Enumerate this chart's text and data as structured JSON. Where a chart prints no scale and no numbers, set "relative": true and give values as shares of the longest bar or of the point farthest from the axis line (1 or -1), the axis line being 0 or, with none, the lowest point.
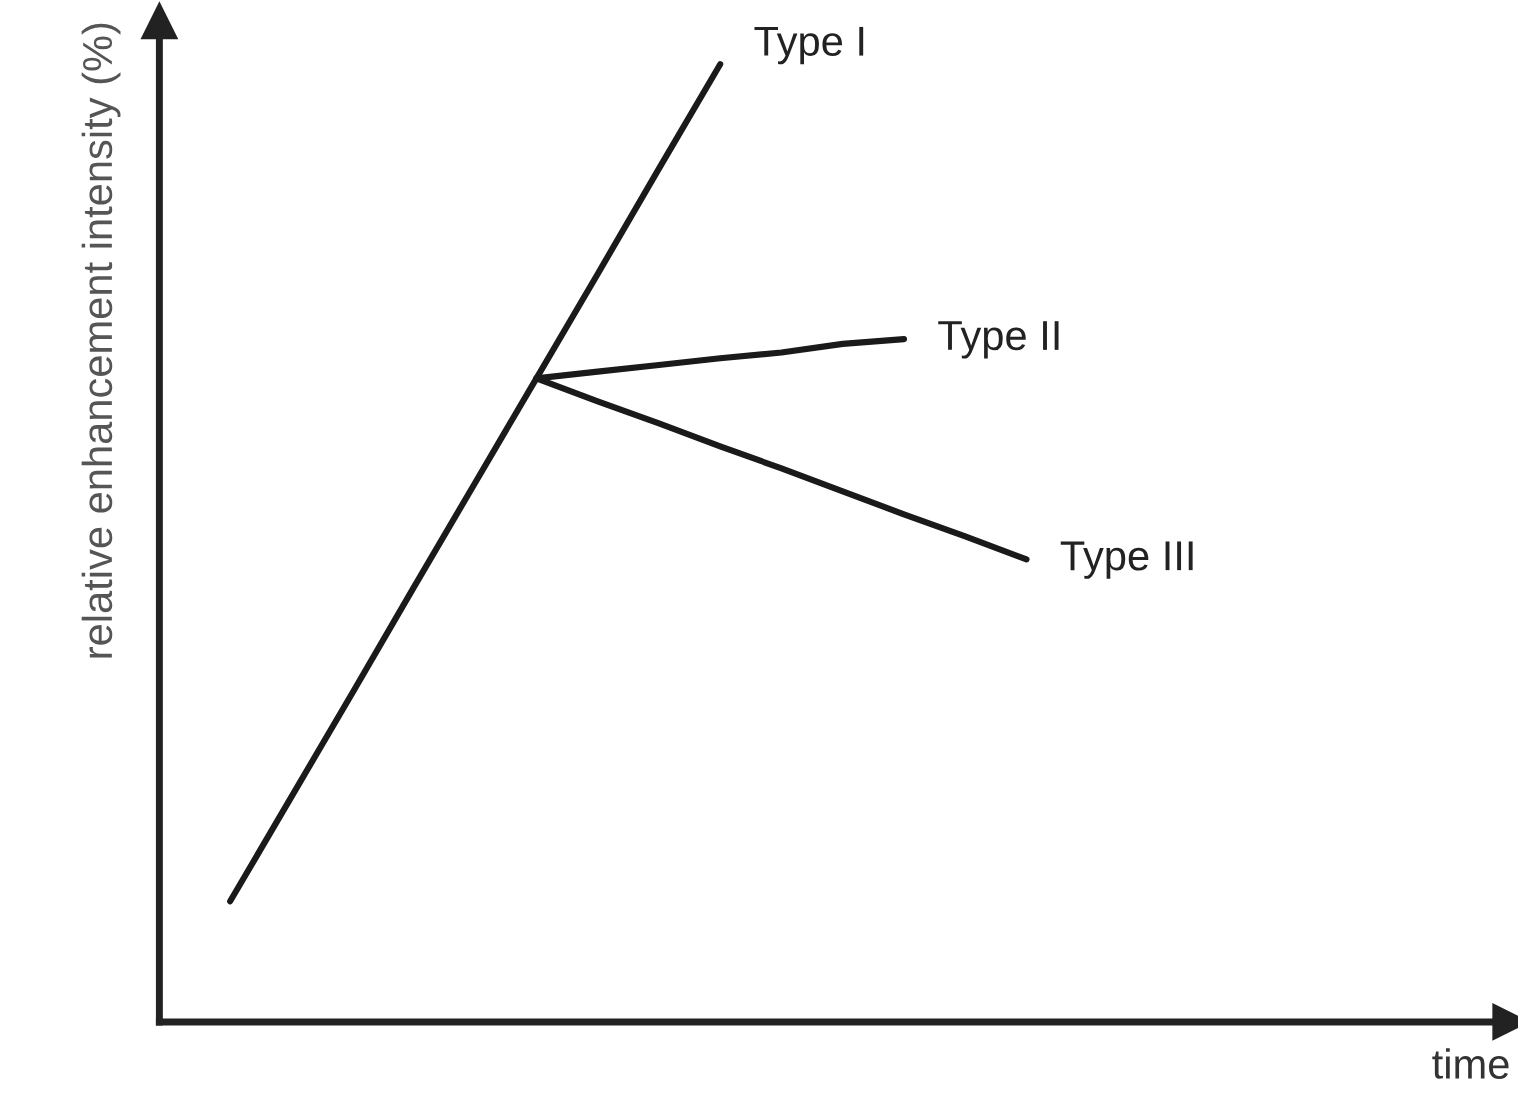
{
  "chart_data": {
    "type": "line",
    "relative": true,
    "xlabel": "time",
    "ylabel": "relative enhancement intensity (%)",
    "legend": false,
    "marker": "none",
    "line_style": "solid",
    "categories": [
      null,
      null,
      null,
      null,
      null,
      null,
      null,
      null,
      null,
      null,
      null,
      null,
      null,
      null,
      null,
      null,
      null,
      null,
      null,
      null,
      null
    ],
    "series": [
      {
        "name": "Type I",
        "color": "#1a1a1a",
        "values": [
          0.126,
          0.235,
          0.344,
          0.454,
          0.563,
          0.672,
          0.781,
          0.891,
          1,
          null,
          null,
          null,
          null,
          null,
          null,
          null,
          null,
          null,
          null,
          null,
          null
        ]
      },
      {
        "name": "Type II",
        "color": "#1a1a1a",
        "values": [
          null,
          null,
          null,
          null,
          null,
          0.672,
          0.679,
          0.686,
          0.693,
          0.699,
          0.708,
          0.713,
          null,
          null,
          null,
          null,
          null,
          null,
          null,
          null,
          null
        ]
      },
      {
        "name": "Type III",
        "color": "#1a1a1a",
        "values": [
          null,
          null,
          null,
          null,
          null,
          0.672,
          0.648,
          0.625,
          0.601,
          0.578,
          0.554,
          0.53,
          0.507,
          0.483,
          null,
          null,
          null,
          null,
          null,
          null,
          null
        ]
      }
    ]
  }
}
